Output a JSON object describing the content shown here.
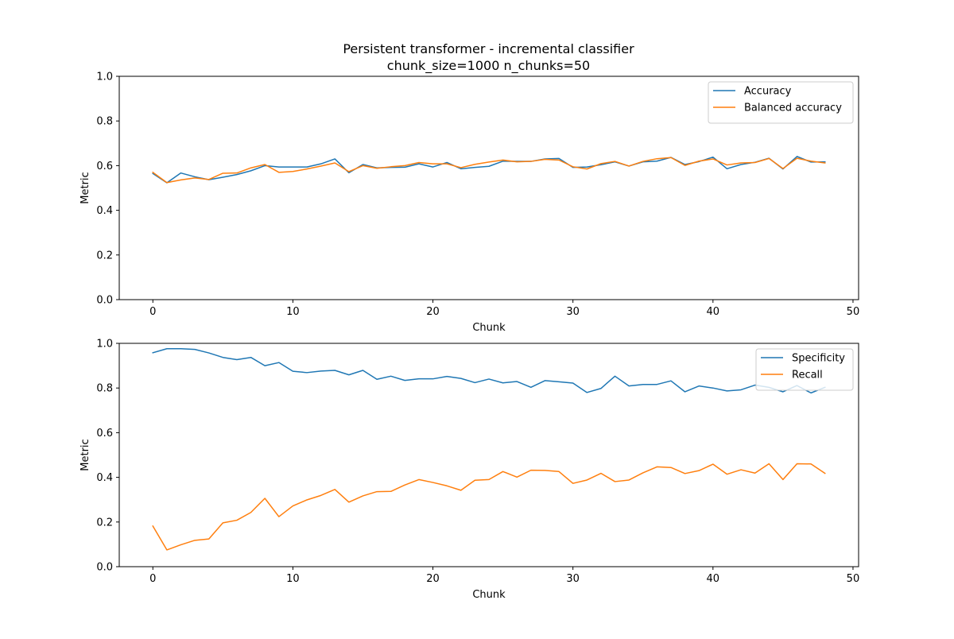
{
  "figure": {
    "title_line1": "Persistent transformer - incremental classifier",
    "title_line2": "chunk_size=1000 n_chunks=50"
  },
  "chart_data": [
    {
      "type": "line",
      "xlabel": "Chunk",
      "ylabel": "Metric",
      "xlim": [
        -2.4,
        50.4
      ],
      "ylim": [
        0.0,
        1.0
      ],
      "xticks": [
        0,
        10,
        20,
        30,
        40,
        50
      ],
      "yticks": [
        0.0,
        0.2,
        0.4,
        0.6,
        0.8,
        1.0
      ],
      "xtick_labels": [
        "0",
        "10",
        "20",
        "30",
        "40",
        "50"
      ],
      "ytick_labels": [
        "0.0",
        "0.2",
        "0.4",
        "0.6",
        "0.8",
        "1.0"
      ],
      "grid": false,
      "legend_position": "upper right",
      "x": [
        0,
        1,
        2,
        3,
        4,
        5,
        6,
        7,
        8,
        9,
        10,
        11,
        12,
        13,
        14,
        15,
        16,
        17,
        18,
        19,
        20,
        21,
        22,
        23,
        24,
        25,
        26,
        27,
        28,
        29,
        30,
        31,
        32,
        33,
        34,
        35,
        36,
        37,
        38,
        39,
        40,
        41,
        42,
        43,
        44,
        45,
        46,
        47,
        48
      ],
      "series": [
        {
          "name": "Accuracy",
          "color": "#1f77b4",
          "values": [
            0.565,
            0.523,
            0.567,
            0.55,
            0.537,
            0.548,
            0.56,
            0.577,
            0.6,
            0.594,
            0.594,
            0.594,
            0.608,
            0.63,
            0.568,
            0.605,
            0.59,
            0.592,
            0.593,
            0.608,
            0.594,
            0.614,
            0.586,
            0.592,
            0.597,
            0.62,
            0.619,
            0.619,
            0.63,
            0.632,
            0.592,
            0.594,
            0.604,
            0.617,
            0.598,
            0.617,
            0.62,
            0.637,
            0.605,
            0.618,
            0.638,
            0.586,
            0.605,
            0.615,
            0.633,
            0.585,
            0.641,
            0.616,
            0.617
          ]
        },
        {
          "name": "Balanced accuracy",
          "color": "#ff7f0e",
          "values": [
            0.57,
            0.524,
            0.536,
            0.545,
            0.538,
            0.566,
            0.567,
            0.59,
            0.605,
            0.57,
            0.574,
            0.585,
            0.598,
            0.612,
            0.573,
            0.6,
            0.588,
            0.595,
            0.6,
            0.614,
            0.608,
            0.608,
            0.591,
            0.606,
            0.616,
            0.625,
            0.617,
            0.619,
            0.628,
            0.625,
            0.595,
            0.585,
            0.609,
            0.619,
            0.598,
            0.619,
            0.631,
            0.636,
            0.601,
            0.62,
            0.63,
            0.603,
            0.612,
            0.614,
            0.632,
            0.587,
            0.633,
            0.62,
            0.612
          ]
        }
      ]
    },
    {
      "type": "line",
      "xlabel": "Chunk",
      "ylabel": "Metric",
      "xlim": [
        -2.4,
        50.4
      ],
      "ylim": [
        0.0,
        1.0
      ],
      "xticks": [
        0,
        10,
        20,
        30,
        40,
        50
      ],
      "yticks": [
        0.0,
        0.2,
        0.4,
        0.6,
        0.8,
        1.0
      ],
      "xtick_labels": [
        "0",
        "10",
        "20",
        "30",
        "40",
        "50"
      ],
      "ytick_labels": [
        "0.0",
        "0.2",
        "0.4",
        "0.6",
        "0.8",
        "1.0"
      ],
      "grid": false,
      "legend_position": "upper right",
      "x": [
        0,
        1,
        2,
        3,
        4,
        5,
        6,
        7,
        8,
        9,
        10,
        11,
        12,
        13,
        14,
        15,
        16,
        17,
        18,
        19,
        20,
        21,
        22,
        23,
        24,
        25,
        26,
        27,
        28,
        29,
        30,
        31,
        32,
        33,
        34,
        35,
        36,
        37,
        38,
        39,
        40,
        41,
        42,
        43,
        44,
        45,
        46,
        47,
        48
      ],
      "series": [
        {
          "name": "Specificity",
          "color": "#1f77b4",
          "values": [
            0.958,
            0.976,
            0.976,
            0.973,
            0.957,
            0.937,
            0.927,
            0.937,
            0.9,
            0.914,
            0.875,
            0.869,
            0.876,
            0.879,
            0.859,
            0.879,
            0.839,
            0.853,
            0.834,
            0.841,
            0.841,
            0.852,
            0.843,
            0.824,
            0.84,
            0.823,
            0.829,
            0.803,
            0.833,
            0.828,
            0.822,
            0.78,
            0.798,
            0.853,
            0.809,
            0.816,
            0.816,
            0.832,
            0.783,
            0.809,
            0.8,
            0.787,
            0.792,
            0.813,
            0.803,
            0.783,
            0.811,
            0.778,
            0.803
          ]
        },
        {
          "name": "Recall",
          "color": "#ff7f0e",
          "values": [
            0.182,
            0.075,
            0.098,
            0.118,
            0.124,
            0.196,
            0.208,
            0.243,
            0.306,
            0.224,
            0.272,
            0.299,
            0.319,
            0.346,
            0.289,
            0.317,
            0.336,
            0.337,
            0.366,
            0.39,
            0.377,
            0.362,
            0.342,
            0.387,
            0.39,
            0.426,
            0.401,
            0.432,
            0.431,
            0.426,
            0.373,
            0.388,
            0.418,
            0.381,
            0.388,
            0.42,
            0.447,
            0.444,
            0.417,
            0.43,
            0.459,
            0.414,
            0.434,
            0.419,
            0.461,
            0.39,
            0.461,
            0.46,
            0.418
          ]
        }
      ]
    }
  ]
}
